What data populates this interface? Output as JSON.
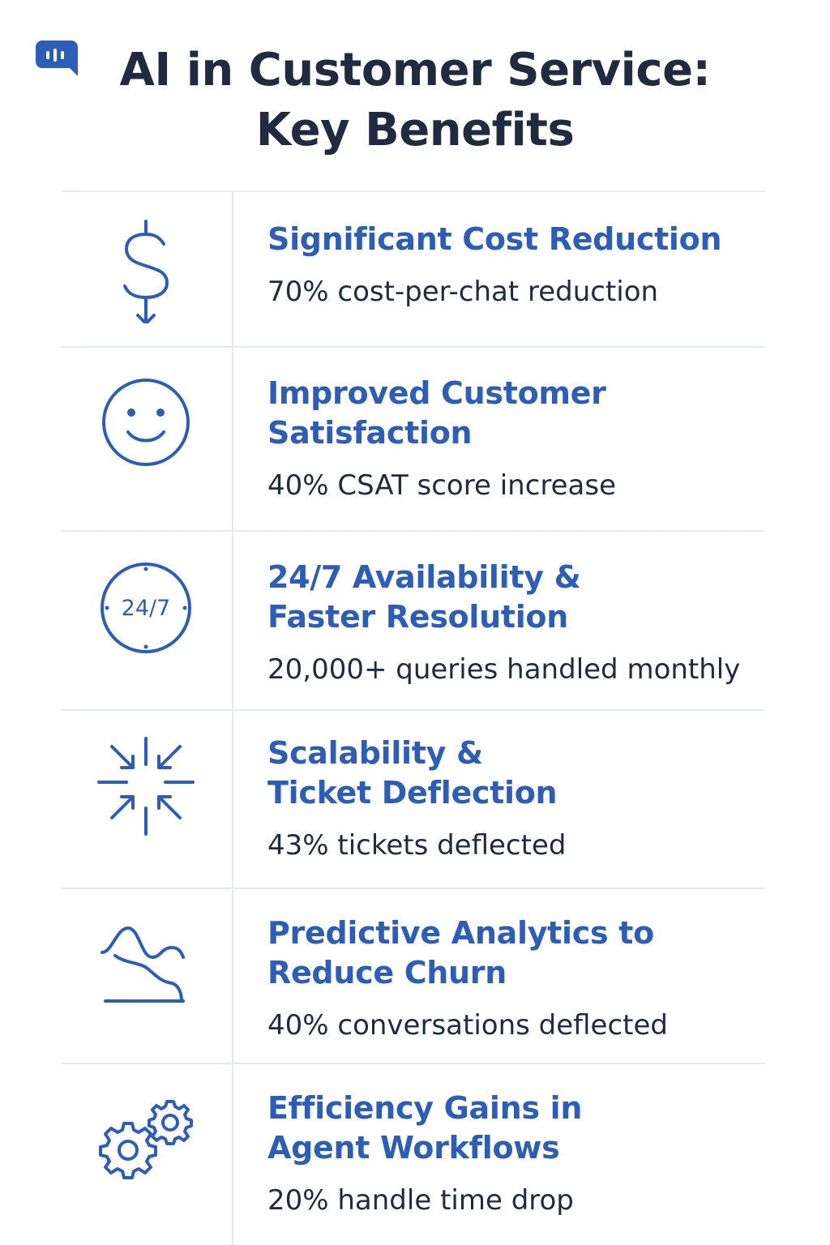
{
  "header": {
    "title_line1": "AI in Customer Service:",
    "title_line2": "Key Benefits",
    "logo_icon": "chat-bubble-icon"
  },
  "colors": {
    "accent": "#2c5db8",
    "title": "#1e2b40",
    "divider": "#e6e9ee"
  },
  "benefits": [
    {
      "icon": "dollar-down-arrow-icon",
      "heading_line1": "Significant Cost Reduction",
      "heading_line2": "",
      "stat": "70% cost-per-chat reduction"
    },
    {
      "icon": "smiley-face-icon",
      "heading_line1": "Improved Customer",
      "heading_line2": "Satisfaction",
      "stat": "40% CSAT score increase"
    },
    {
      "icon": "clock-24-7-icon",
      "icon_text": "24/7",
      "heading_line1": "24/7 Availability &",
      "heading_line2": "Faster Resolution",
      "stat": "20,000+ queries handled monthly"
    },
    {
      "icon": "converging-arrows-icon",
      "heading_line1": "Scalability &",
      "heading_line2": "Ticket Deflection",
      "stat": "43% tickets deflected"
    },
    {
      "icon": "declining-wave-icon",
      "heading_line1": "Predictive Analytics to",
      "heading_line2": "Reduce Churn",
      "stat": "40% conversations deflected"
    },
    {
      "icon": "gears-icon",
      "heading_line1": "Efficiency Gains in",
      "heading_line2": "Agent Workflows",
      "stat": "20% handle time drop"
    }
  ]
}
